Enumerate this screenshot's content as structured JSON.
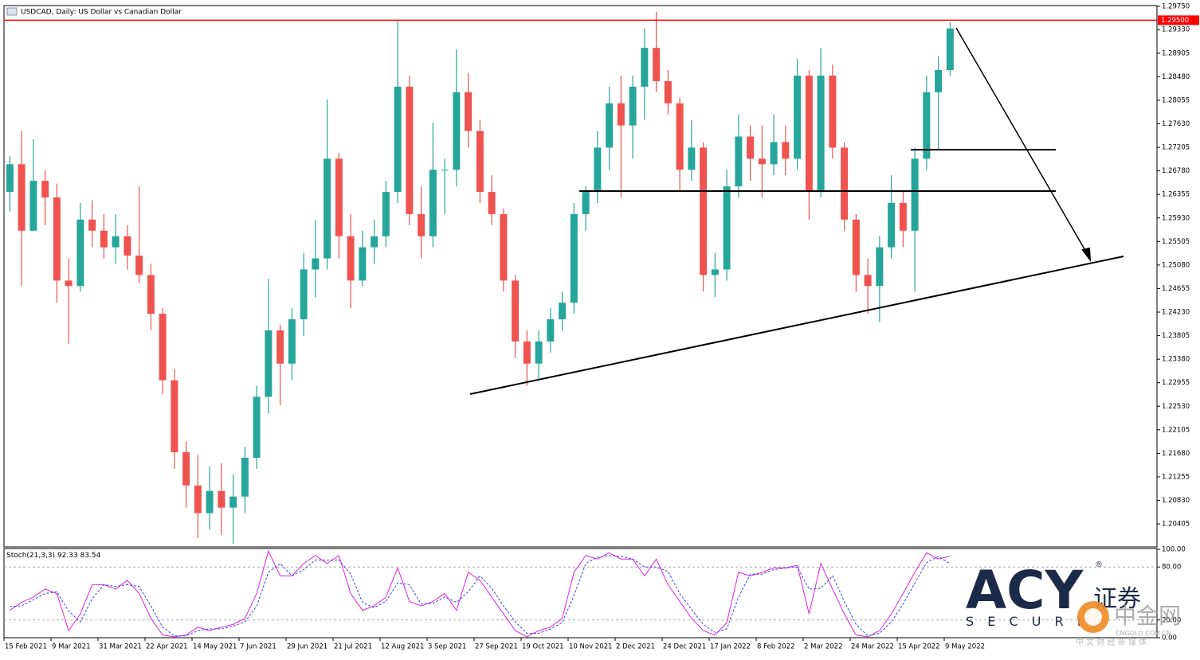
{
  "header": {
    "title": "USDCAD, Daily:  US Dollar vs Canadian Dollar"
  },
  "chart_data": [
    {
      "type": "candlestick",
      "categories": [
        "15 Feb 2021",
        null,
        null,
        null,
        "9 Mar 2021",
        null,
        null,
        null,
        "31 Mar 2021",
        null,
        null,
        null,
        "22 Apr 2021",
        null,
        null,
        null,
        "14 May 2021",
        null,
        null,
        null,
        "7 Jun 2021",
        null,
        null,
        null,
        "29 Jun 2021",
        null,
        null,
        null,
        "21 Jul 2021",
        null,
        null,
        null,
        "12 Aug 2021",
        null,
        null,
        null,
        "3 Sep 2021",
        null,
        null,
        null,
        "27 Sep 2021",
        null,
        null,
        null,
        "19 Oct 2021",
        null,
        null,
        null,
        "10 Nov 2021",
        null,
        null,
        null,
        "2 Dec 2021",
        null,
        null,
        null,
        "24 Dec 2021",
        null,
        null,
        null,
        "17 Jan 2022",
        null,
        null,
        null,
        "8 Feb 2022",
        null,
        null,
        null,
        "2 Mar 2022",
        null,
        null,
        null,
        "24 Mar 2022",
        null,
        null,
        null,
        "15 Apr 2022",
        null,
        null,
        null,
        "9 May 2022"
      ],
      "open": [
        1.264,
        1.269,
        1.257,
        1.266,
        1.263,
        1.248,
        1.247,
        1.259,
        1.257,
        1.254,
        1.256,
        1.2525,
        1.249,
        1.242,
        1.23,
        1.217,
        1.211,
        1.206,
        1.21,
        1.207,
        1.209,
        1.216,
        1.227,
        1.239,
        1.233,
        1.241,
        1.25,
        1.252,
        1.27,
        1.256,
        1.248,
        1.254,
        1.256,
        1.264,
        1.283,
        1.26,
        1.256,
        1.268,
        1.268,
        1.282,
        1.275,
        1.264,
        1.26,
        1.248,
        1.237,
        1.233,
        1.237,
        1.241,
        1.244,
        1.26,
        1.264,
        1.272,
        1.28,
        1.276,
        1.283,
        1.29,
        1.284,
        1.28,
        1.268,
        1.272,
        1.249,
        1.25,
        1.265,
        1.274,
        1.27,
        1.269,
        1.273,
        1.27,
        1.285,
        1.264,
        1.285,
        1.272,
        1.259,
        1.249,
        1.247,
        1.254,
        1.262,
        1.257,
        1.27,
        1.282,
        1.286
      ],
      "high": [
        1.2705,
        1.275,
        1.2735,
        1.268,
        1.2655,
        1.252,
        1.262,
        1.2625,
        1.26,
        1.26,
        1.258,
        1.265,
        1.251,
        1.243,
        1.232,
        1.219,
        1.2165,
        1.2145,
        1.215,
        1.213,
        1.218,
        1.229,
        1.2483,
        1.24,
        1.243,
        1.253,
        1.259,
        1.2807,
        1.271,
        1.26,
        1.257,
        1.259,
        1.266,
        1.295,
        1.285,
        1.265,
        1.2765,
        1.27,
        1.2897,
        1.2855,
        1.277,
        1.267,
        1.261,
        1.249,
        1.239,
        1.239,
        1.243,
        1.246,
        1.262,
        1.265,
        1.275,
        1.283,
        1.285,
        1.285,
        1.2935,
        1.2965,
        1.286,
        1.281,
        1.277,
        1.273,
        1.253,
        1.268,
        1.278,
        1.276,
        1.276,
        1.278,
        1.276,
        1.288,
        1.286,
        1.29,
        1.287,
        1.273,
        1.26,
        1.252,
        1.256,
        1.267,
        1.264,
        1.272,
        1.285,
        1.2885,
        1.2946
      ],
      "low": [
        1.2605,
        1.247,
        1.257,
        1.258,
        1.244,
        1.2365,
        1.246,
        1.254,
        1.252,
        1.251,
        1.25,
        1.2475,
        1.239,
        1.2275,
        1.214,
        1.207,
        1.2015,
        1.203,
        1.202,
        1.2005,
        1.206,
        1.214,
        1.224,
        1.2255,
        1.23,
        1.238,
        1.245,
        1.25,
        1.252,
        1.243,
        1.247,
        1.251,
        1.254,
        1.262,
        1.258,
        1.252,
        1.254,
        1.26,
        1.265,
        1.272,
        1.262,
        1.258,
        1.246,
        1.234,
        1.229,
        1.23,
        1.235,
        1.239,
        1.242,
        1.257,
        1.262,
        1.268,
        1.263,
        1.27,
        1.277,
        1.282,
        1.278,
        1.264,
        1.266,
        1.246,
        1.245,
        1.248,
        1.263,
        1.266,
        1.263,
        1.267,
        1.267,
        1.268,
        1.259,
        1.263,
        1.27,
        1.257,
        1.246,
        1.242,
        1.2405,
        1.252,
        1.254,
        1.246,
        1.268,
        1.2715,
        1.285
      ],
      "close": [
        1.269,
        1.257,
        1.266,
        1.263,
        1.248,
        1.247,
        1.259,
        1.257,
        1.254,
        1.256,
        1.2525,
        1.249,
        1.242,
        1.23,
        1.217,
        1.211,
        1.206,
        1.21,
        1.207,
        1.209,
        1.216,
        1.227,
        1.239,
        1.233,
        1.241,
        1.25,
        1.252,
        1.27,
        1.256,
        1.248,
        1.254,
        1.256,
        1.264,
        1.283,
        1.26,
        1.256,
        1.268,
        1.268,
        1.282,
        1.275,
        1.264,
        1.26,
        1.248,
        1.237,
        1.233,
        1.237,
        1.241,
        1.244,
        1.26,
        1.264,
        1.272,
        1.28,
        1.276,
        1.283,
        1.29,
        1.284,
        1.28,
        1.268,
        1.272,
        1.249,
        1.25,
        1.265,
        1.274,
        1.27,
        1.269,
        1.273,
        1.27,
        1.285,
        1.264,
        1.285,
        1.272,
        1.259,
        1.249,
        1.247,
        1.254,
        1.262,
        1.257,
        1.27,
        1.282,
        1.286,
        1.2935
      ],
      "up_color": "#26a69a",
      "down_color": "#ef5350",
      "ylim": [
        1.1999,
        1.2975
      ],
      "yticks": [
        {
          "value": 1.2975,
          "label": "1.29750"
        },
        {
          "value": 1.2933,
          "label": "1.29330"
        },
        {
          "value": 1.28905,
          "label": "1.28905"
        },
        {
          "value": 1.2848,
          "label": "1.28480"
        },
        {
          "value": 1.28055,
          "label": "1.28055"
        },
        {
          "value": 1.2763,
          "label": "1.27630"
        },
        {
          "value": 1.27205,
          "label": "1.27205"
        },
        {
          "value": 1.2678,
          "label": "1.26780"
        },
        {
          "value": 1.26355,
          "label": "1.26355"
        },
        {
          "value": 1.2593,
          "label": "1.25930"
        },
        {
          "value": 1.25505,
          "label": "1.25505"
        },
        {
          "value": 1.2508,
          "label": "1.25080"
        },
        {
          "value": 1.24655,
          "label": "1.24655"
        },
        {
          "value": 1.2423,
          "label": "1.24230"
        },
        {
          "value": 1.23805,
          "label": "1.23805"
        },
        {
          "value": 1.2338,
          "label": "1.23380"
        },
        {
          "value": 1.22955,
          "label": "1.22955"
        },
        {
          "value": 1.2253,
          "label": "1.22530"
        },
        {
          "value": 1.22105,
          "label": "1.22105"
        },
        {
          "value": 1.2168,
          "label": "1.21680"
        },
        {
          "value": 1.21255,
          "label": "1.21255"
        },
        {
          "value": 1.2083,
          "label": "1.20830"
        },
        {
          "value": 1.20405,
          "label": "1.20405"
        }
      ],
      "price_line": {
        "value": 1.295,
        "label": "1.29500",
        "color": "#ff0000"
      }
    },
    {
      "type": "line",
      "indicator": "Stoch(21,3,3)",
      "series": [
        {
          "color": "#e020e0",
          "dashed": false,
          "values": [
            31,
            40,
            46,
            55,
            50,
            8,
            27,
            60,
            60,
            55,
            65,
            50,
            22,
            3,
            1,
            3,
            12,
            8,
            12,
            15,
            22,
            50,
            98,
            70,
            70,
            84,
            93,
            84,
            93,
            50,
            31,
            36,
            46,
            79,
            41,
            36,
            41,
            50,
            31,
            74,
            65,
            46,
            27,
            8,
            1,
            8,
            12,
            22,
            74,
            93,
            89,
            96,
            89,
            89,
            70,
            89,
            60,
            41,
            22,
            8,
            3,
            17,
            74,
            70,
            74,
            79,
            79,
            82,
            27,
            84,
            55,
            27,
            3,
            1,
            8,
            27,
            50,
            74,
            96,
            89,
            92.33
          ]
        },
        {
          "color": "#3344ee",
          "dashed": true,
          "values": [
            35,
            36,
            43,
            50,
            52,
            30,
            18,
            44,
            60,
            58,
            60,
            58,
            36,
            12,
            2,
            2,
            8,
            10,
            10,
            13,
            18,
            36,
            74,
            84,
            70,
            77,
            88,
            88,
            88,
            72,
            40,
            34,
            41,
            62,
            60,
            38,
            39,
            46,
            40,
            52,
            70,
            56,
            36,
            18,
            5,
            5,
            10,
            17,
            48,
            84,
            91,
            93,
            92,
            89,
            80,
            80,
            75,
            50,
            32,
            15,
            6,
            10,
            46,
            72,
            72,
            77,
            79,
            80,
            55,
            56,
            70,
            41,
            15,
            2,
            5,
            18,
            38,
            62,
            85,
            92,
            83.54
          ]
        }
      ],
      "ylim": [
        0,
        100
      ],
      "yticks": [
        {
          "value": 100,
          "label": "100.00"
        },
        {
          "value": 80,
          "label": "80.00"
        },
        {
          "value": 20,
          "label": "20.00"
        },
        {
          "value": 0,
          "label": "0.00"
        }
      ],
      "grid": true
    }
  ],
  "watermarks": {
    "logo": "ACY",
    "logo_mark": "®",
    "logo_cn": "证券",
    "logo_sub": "S E C U R I",
    "site": "中金网",
    "site_url": "CNGOLD.COM.CN",
    "site_tagline": "中 文 财 经 新 媒 体"
  }
}
